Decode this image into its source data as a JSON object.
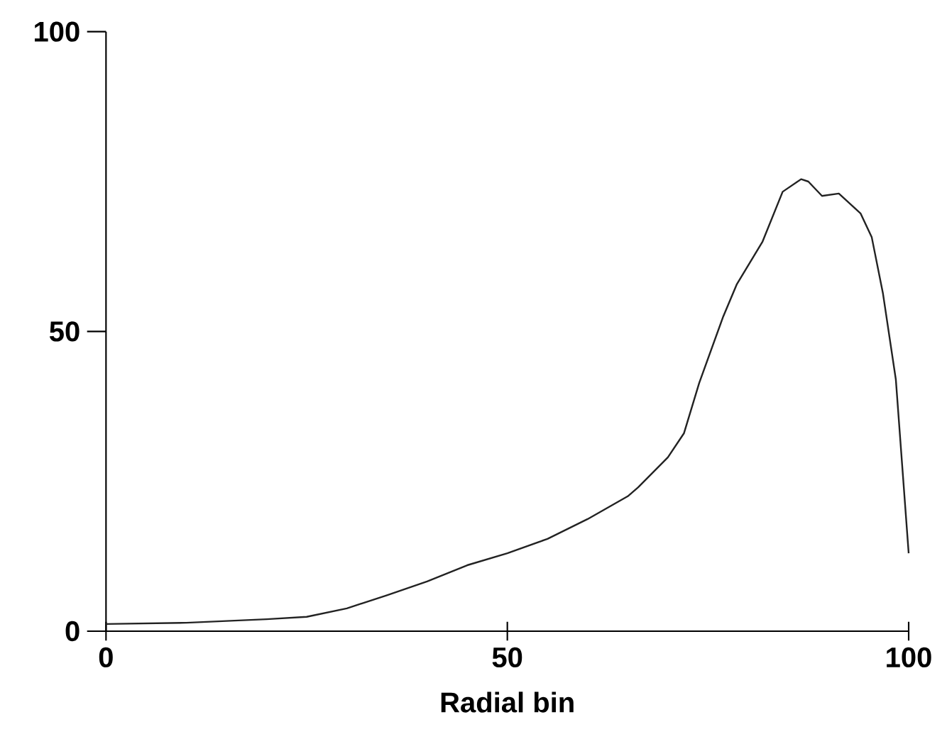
{
  "chart_data": {
    "type": "line",
    "xlabel": "Radial bin",
    "color": "#222222",
    "x": [
      0,
      10,
      20,
      25,
      30,
      35,
      40,
      45,
      50,
      55,
      60,
      65,
      66.3,
      70,
      72,
      73.9,
      76.9,
      78.6,
      81.8,
      84.3,
      86.6,
      87.5,
      89.2,
      91.3,
      94,
      95.4,
      96.8,
      98.4,
      100
    ],
    "values": [
      1.2,
      1.4,
      2,
      2.4,
      3.8,
      6,
      8.3,
      11,
      13,
      15.4,
      18.7,
      22.5,
      24,
      29,
      33,
      41.4,
      52.5,
      57.9,
      65,
      73.3,
      75.4,
      75,
      72.6,
      73,
      69.7,
      65.7,
      56.3,
      42,
      13
    ],
    "xlim": [
      0,
      100
    ],
    "ylim": [
      0,
      100
    ],
    "xticks": [
      0,
      50,
      100
    ],
    "yticks": [
      0,
      50,
      100
    ],
    "grid": false,
    "marker": "none",
    "line_style": "solid"
  }
}
